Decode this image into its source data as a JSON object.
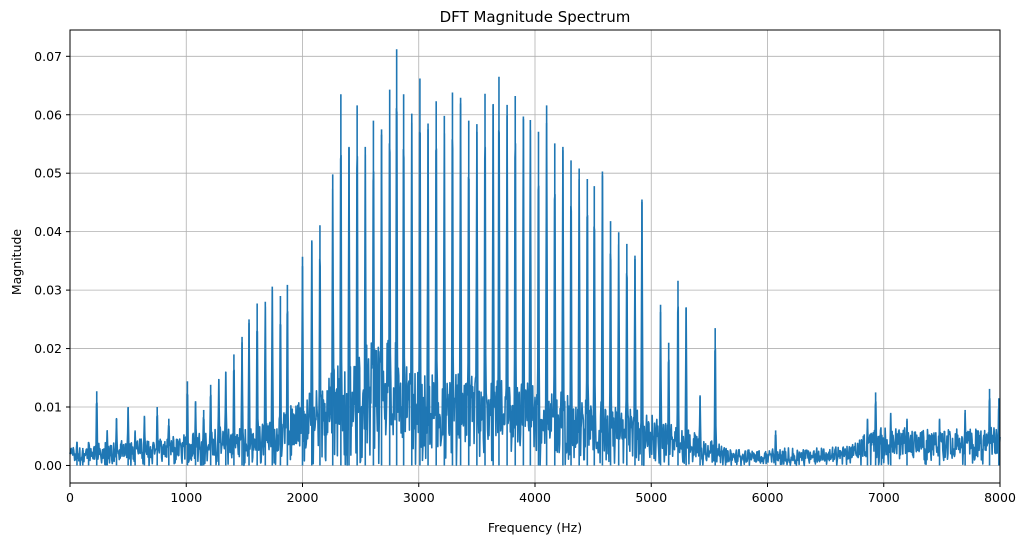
{
  "chart_data": {
    "type": "line",
    "title": "DFT Magnitude Spectrum",
    "xlabel": "Frequency (Hz)",
    "ylabel": "Magnitude",
    "xlim": [
      0,
      8000
    ],
    "ylim": [
      -0.003,
      0.0745
    ],
    "grid": true,
    "series_color": "#1f77b4",
    "x_ticks": [
      0,
      1000,
      2000,
      3000,
      4000,
      5000,
      6000,
      7000,
      8000
    ],
    "x_tick_labels": [
      "0",
      "1000",
      "2000",
      "3000",
      "4000",
      "5000",
      "6000",
      "7000",
      "8000"
    ],
    "y_ticks": [
      0.0,
      0.01,
      0.02,
      0.03,
      0.04,
      0.05,
      0.06,
      0.07
    ],
    "y_tick_labels": [
      "0.00",
      "0.01",
      "0.02",
      "0.03",
      "0.04",
      "0.05",
      "0.06",
      "0.07"
    ],
    "harmonic_spacing_hz": 69,
    "peaks": [
      {
        "x": 60,
        "y": 0.004
      },
      {
        "x": 110,
        "y": 0.003
      },
      {
        "x": 160,
        "y": 0.004
      },
      {
        "x": 230,
        "y": 0.0127
      },
      {
        "x": 320,
        "y": 0.006
      },
      {
        "x": 400,
        "y": 0.008
      },
      {
        "x": 500,
        "y": 0.01
      },
      {
        "x": 560,
        "y": 0.006
      },
      {
        "x": 640,
        "y": 0.0085
      },
      {
        "x": 750,
        "y": 0.01
      },
      {
        "x": 850,
        "y": 0.008
      },
      {
        "x": 1010,
        "y": 0.0144
      },
      {
        "x": 1080,
        "y": 0.011
      },
      {
        "x": 1150,
        "y": 0.0095
      },
      {
        "x": 1210,
        "y": 0.0138
      },
      {
        "x": 1280,
        "y": 0.0148
      },
      {
        "x": 1340,
        "y": 0.016
      },
      {
        "x": 1410,
        "y": 0.019
      },
      {
        "x": 1480,
        "y": 0.022
      },
      {
        "x": 1540,
        "y": 0.025
      },
      {
        "x": 1610,
        "y": 0.0277
      },
      {
        "x": 1680,
        "y": 0.028
      },
      {
        "x": 1740,
        "y": 0.0306
      },
      {
        "x": 1810,
        "y": 0.029
      },
      {
        "x": 1870,
        "y": 0.0309
      },
      {
        "x": 2000,
        "y": 0.0357
      },
      {
        "x": 2080,
        "y": 0.0385
      },
      {
        "x": 2150,
        "y": 0.0411
      },
      {
        "x": 2260,
        "y": 0.0498
      },
      {
        "x": 2330,
        "y": 0.0635
      },
      {
        "x": 2400,
        "y": 0.0545
      },
      {
        "x": 2470,
        "y": 0.0616
      },
      {
        "x": 2540,
        "y": 0.0545
      },
      {
        "x": 2610,
        "y": 0.059
      },
      {
        "x": 2680,
        "y": 0.0575
      },
      {
        "x": 2750,
        "y": 0.0643
      },
      {
        "x": 2810,
        "y": 0.0712
      },
      {
        "x": 2870,
        "y": 0.0635
      },
      {
        "x": 2940,
        "y": 0.0602
      },
      {
        "x": 3010,
        "y": 0.0662
      },
      {
        "x": 3080,
        "y": 0.0585
      },
      {
        "x": 3150,
        "y": 0.0623
      },
      {
        "x": 3220,
        "y": 0.0598
      },
      {
        "x": 3290,
        "y": 0.0638
      },
      {
        "x": 3360,
        "y": 0.0629
      },
      {
        "x": 3430,
        "y": 0.059
      },
      {
        "x": 3500,
        "y": 0.0584
      },
      {
        "x": 3570,
        "y": 0.0636
      },
      {
        "x": 3640,
        "y": 0.0618
      },
      {
        "x": 3690,
        "y": 0.0665
      },
      {
        "x": 3760,
        "y": 0.0617
      },
      {
        "x": 3830,
        "y": 0.0632
      },
      {
        "x": 3900,
        "y": 0.0597
      },
      {
        "x": 3960,
        "y": 0.0591
      },
      {
        "x": 4030,
        "y": 0.0571
      },
      {
        "x": 4100,
        "y": 0.0616
      },
      {
        "x": 4170,
        "y": 0.0551
      },
      {
        "x": 4240,
        "y": 0.0545
      },
      {
        "x": 4310,
        "y": 0.0522
      },
      {
        "x": 4380,
        "y": 0.0508
      },
      {
        "x": 4450,
        "y": 0.049
      },
      {
        "x": 4510,
        "y": 0.0478
      },
      {
        "x": 4580,
        "y": 0.0503
      },
      {
        "x": 4650,
        "y": 0.0418
      },
      {
        "x": 4720,
        "y": 0.0399
      },
      {
        "x": 4790,
        "y": 0.0379
      },
      {
        "x": 4860,
        "y": 0.0359
      },
      {
        "x": 4920,
        "y": 0.0455
      },
      {
        "x": 5080,
        "y": 0.0275
      },
      {
        "x": 5150,
        "y": 0.021
      },
      {
        "x": 5230,
        "y": 0.0316
      },
      {
        "x": 5300,
        "y": 0.027
      },
      {
        "x": 5420,
        "y": 0.012
      },
      {
        "x": 5550,
        "y": 0.0235
      },
      {
        "x": 6070,
        "y": 0.006
      },
      {
        "x": 6860,
        "y": 0.008
      },
      {
        "x": 6930,
        "y": 0.0125
      },
      {
        "x": 7060,
        "y": 0.009
      },
      {
        "x": 7200,
        "y": 0.008
      },
      {
        "x": 7480,
        "y": 0.008
      },
      {
        "x": 7700,
        "y": 0.0095
      },
      {
        "x": 7910,
        "y": 0.0131
      },
      {
        "x": 7990,
        "y": 0.0115
      }
    ],
    "noise_floor": [
      {
        "x": 0,
        "y": 0.003
      },
      {
        "x": 1000,
        "y": 0.005
      },
      {
        "x": 1800,
        "y": 0.008
      },
      {
        "x": 2700,
        "y": 0.022
      },
      {
        "x": 3000,
        "y": 0.015
      },
      {
        "x": 4000,
        "y": 0.013
      },
      {
        "x": 5000,
        "y": 0.008
      },
      {
        "x": 5300,
        "y": 0.006
      },
      {
        "x": 5700,
        "y": 0.0025
      },
      {
        "x": 6700,
        "y": 0.003
      },
      {
        "x": 6900,
        "y": 0.006
      },
      {
        "x": 8000,
        "y": 0.006
      }
    ]
  }
}
